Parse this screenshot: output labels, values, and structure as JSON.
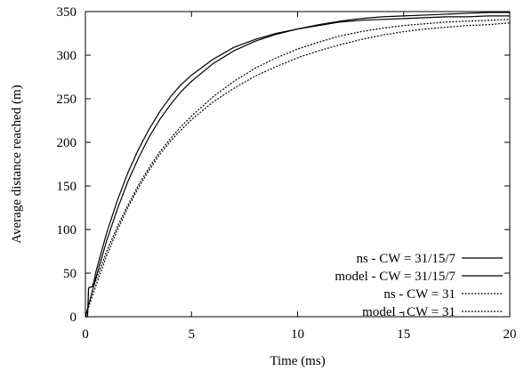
{
  "chart_data": {
    "type": "line",
    "xlabel": "Time (ms)",
    "ylabel": "Average distance reached (m)",
    "xlim": [
      0,
      20
    ],
    "ylim": [
      0,
      350
    ],
    "xticks": [
      0,
      5,
      10,
      15,
      20
    ],
    "yticks": [
      0,
      50,
      100,
      150,
      200,
      250,
      300,
      350
    ],
    "x_tick_labels": [
      "0",
      "5",
      "10",
      "15",
      "20"
    ],
    "y_tick_labels": [
      "0",
      "50",
      "100",
      "150",
      "200",
      "250",
      "300",
      "350"
    ],
    "grid": false,
    "legend_position": "bottom-right",
    "series": [
      {
        "name": "ns - CW = 31/15/7",
        "style": "solid",
        "color": "#000000",
        "x": [
          0,
          0.1,
          0.15,
          0.2,
          0.3,
          0.4,
          0.5,
          1,
          1.5,
          2,
          2.5,
          3,
          3.5,
          4,
          4.5,
          5,
          6,
          7,
          8,
          9,
          10,
          11,
          12,
          13,
          14,
          15,
          16,
          17,
          18,
          19,
          20
        ],
        "y": [
          0,
          0,
          33,
          34,
          34,
          40,
          52,
          96,
          133,
          165,
          192,
          215,
          235,
          252,
          266,
          277,
          295,
          309,
          318,
          325,
          330,
          334,
          338,
          340,
          341,
          342,
          343,
          344,
          344,
          345,
          345
        ]
      },
      {
        "name": "model - CW = 31/15/7",
        "style": "solid",
        "color": "#000000",
        "x": [
          0,
          0.5,
          1,
          1.5,
          2,
          2.5,
          3,
          3.5,
          4,
          4.5,
          5,
          6,
          7,
          8,
          9,
          10,
          11,
          12,
          13,
          14,
          15,
          16,
          17,
          18,
          19,
          20
        ],
        "y": [
          0,
          45,
          87,
          123,
          155,
          182,
          206,
          226,
          243,
          258,
          270,
          290,
          305,
          316,
          324,
          330,
          335,
          339,
          342,
          344,
          345,
          346,
          347,
          348,
          349,
          349
        ]
      },
      {
        "name": "ns - CW = 31",
        "style": "dotted",
        "color": "#000000",
        "x": [
          0,
          0.1,
          0.15,
          0.2,
          0.3,
          0.4,
          0.5,
          1,
          1.5,
          2,
          2.5,
          3,
          3.5,
          4,
          4.5,
          5,
          6,
          7,
          8,
          9,
          10,
          11,
          12,
          13,
          14,
          15,
          16,
          17,
          18,
          19,
          20
        ],
        "y": [
          0,
          0,
          33,
          34,
          34,
          35,
          42,
          75,
          103,
          128,
          151,
          171,
          189,
          204,
          218,
          230,
          252,
          270,
          285,
          297,
          307,
          315,
          322,
          327,
          331,
          334,
          336,
          338,
          339,
          340,
          341
        ]
      },
      {
        "name": "model - CW = 31",
        "style": "dotted",
        "color": "#000000",
        "x": [
          0,
          0.5,
          1,
          1.5,
          2,
          2.5,
          3,
          3.5,
          4,
          4.5,
          5,
          6,
          7,
          8,
          9,
          10,
          11,
          12,
          13,
          14,
          15,
          16,
          17,
          18,
          19,
          20
        ],
        "y": [
          0,
          36,
          70,
          99,
          125,
          148,
          168,
          186,
          201,
          214,
          226,
          246,
          262,
          276,
          287,
          297,
          305,
          312,
          318,
          323,
          327,
          330,
          332,
          334,
          335,
          337
        ]
      }
    ]
  }
}
